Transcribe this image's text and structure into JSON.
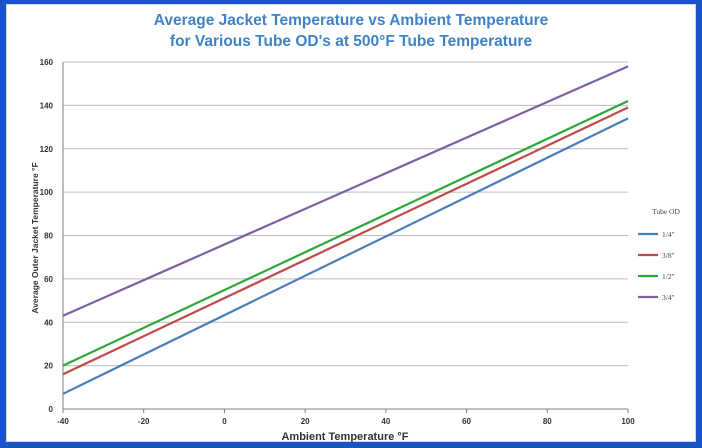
{
  "chart_data": {
    "type": "line",
    "title_lines": [
      "Average Jacket Temperature vs Ambient Temperature",
      "for Various Tube OD's at 500°F Tube Temperature"
    ],
    "xlabel": "Ambient Temperature °F",
    "ylabel": "Average Outer Jacket Temperature °F",
    "x_ticks": [
      "-40",
      "-20",
      "0",
      "20",
      "40",
      "60",
      "80",
      "100"
    ],
    "y_ticks": [
      "0",
      "20",
      "40",
      "60",
      "80",
      "100",
      "120",
      "140",
      "160"
    ],
    "xlim": [
      -40,
      100
    ],
    "ylim": [
      0,
      160
    ],
    "grid": "horizontal",
    "legend_title": "Tube OD",
    "legend_position": "right",
    "x": [
      -40,
      100
    ],
    "series": [
      {
        "name": "1/4\"",
        "color": "#4a7ebb",
        "values": [
          7,
          134
        ]
      },
      {
        "name": "3/8\"",
        "color": "#be4b48",
        "values": [
          16,
          139
        ]
      },
      {
        "name": "1/2\"",
        "color": "#2ea63a",
        "values": [
          20,
          142
        ]
      },
      {
        "name": "3/4\"",
        "color": "#7d60a0",
        "values": [
          43,
          158
        ]
      }
    ]
  }
}
